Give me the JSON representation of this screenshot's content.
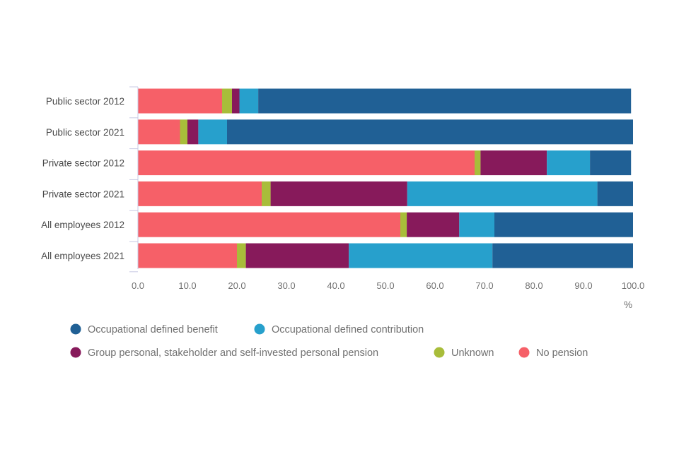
{
  "chart_data": {
    "type": "bar",
    "orientation": "horizontal",
    "stacked": true,
    "categories": [
      "Public sector 2012",
      "Public sector 2021",
      "Private sector 2012",
      "Private sector 2021",
      "All employees 2012",
      "All employees 2021"
    ],
    "series": [
      {
        "name": "No pension",
        "color": "#f66068",
        "values": [
          17,
          8.5,
          68,
          25,
          53,
          20
        ]
      },
      {
        "name": "Unknown",
        "color": "#a8bd3a",
        "values": [
          2,
          1.5,
          1.2,
          1.8,
          1.3,
          1.8
        ]
      },
      {
        "name": "Group personal, stakeholder and self-invested personal pension",
        "color": "#871a5b",
        "values": [
          1.5,
          2.2,
          13.4,
          27.6,
          10.6,
          20.8
        ]
      },
      {
        "name": "Occupational defined contribution",
        "color": "#27a0cc",
        "values": [
          3.8,
          5.8,
          8.7,
          38.4,
          7.1,
          29
        ]
      },
      {
        "name": "Occupational defined benefit",
        "color": "#206095",
        "values": [
          75.3,
          82,
          8.3,
          7.2,
          28,
          28.4
        ]
      }
    ],
    "legend_order": [
      "Occupational defined benefit",
      "Occupational defined contribution",
      "Group personal, stakeholder and self-invested personal pension",
      "Unknown",
      "No pension"
    ],
    "xlim": [
      0,
      100
    ],
    "xticks": [
      "0.0",
      "10.0",
      "20.0",
      "30.0",
      "40.0",
      "50.0",
      "60.0",
      "70.0",
      "80.0",
      "90.0",
      "100.0"
    ],
    "xlabel": "%",
    "legend_position": "bottom",
    "grid": false
  }
}
